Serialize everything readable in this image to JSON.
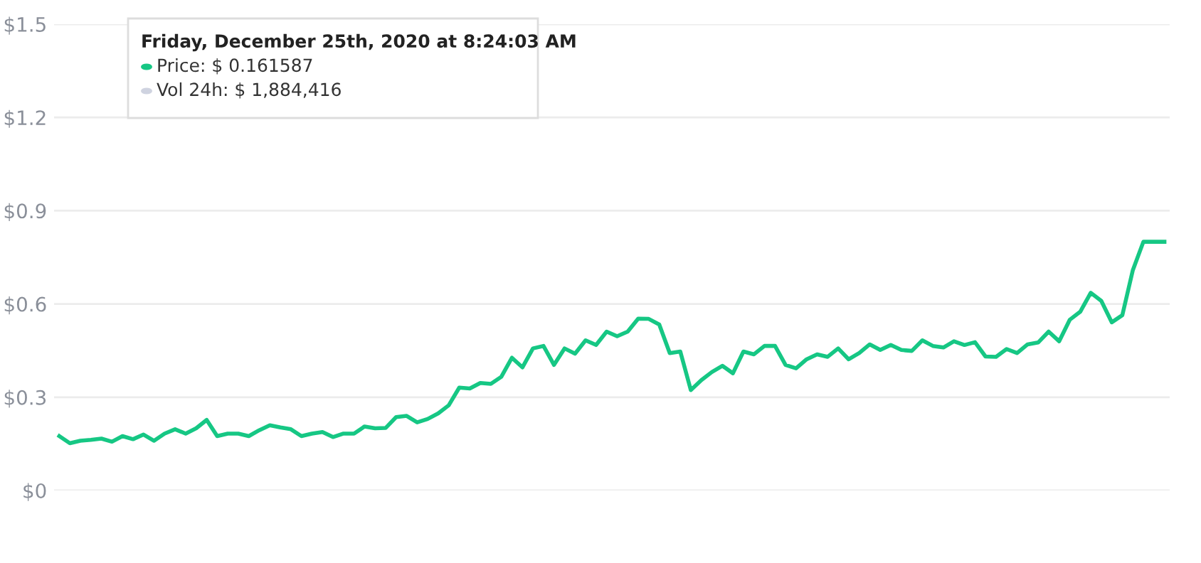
{
  "chart_data": {
    "type": "line",
    "categories": [
      null,
      null,
      null,
      null,
      null,
      null,
      null,
      null,
      null,
      null,
      null,
      null,
      null,
      null,
      null,
      null,
      null,
      null,
      null,
      null,
      null,
      null,
      null,
      null,
      null,
      null,
      null,
      null,
      null,
      null,
      null,
      null,
      null,
      null,
      null,
      null,
      null,
      null,
      null,
      null,
      null,
      null,
      null,
      null,
      null,
      null,
      null,
      null,
      null,
      null,
      null,
      null,
      null,
      null,
      null,
      null,
      null,
      null,
      null,
      null,
      null,
      null,
      null,
      null,
      null,
      null,
      null,
      null,
      null,
      null,
      null,
      null,
      null,
      null,
      null,
      null,
      null,
      null,
      null,
      null,
      null,
      null,
      null,
      null,
      null,
      null,
      null,
      null,
      null,
      null,
      null,
      null,
      null,
      null,
      null,
      null,
      null,
      null,
      null,
      null,
      null,
      null,
      null,
      null,
      null,
      null
    ],
    "series": [
      {
        "color": "#16c784",
        "values": [
          0.175,
          0.152,
          0.16,
          0.163,
          0.167,
          0.157,
          0.175,
          0.165,
          0.18,
          0.16,
          0.183,
          0.197,
          0.183,
          0.2,
          0.227,
          0.175,
          0.183,
          0.183,
          0.175,
          0.194,
          0.21,
          0.203,
          0.197,
          0.175,
          0.183,
          0.188,
          0.172,
          0.183,
          0.183,
          0.206,
          0.2,
          0.201,
          0.236,
          0.24,
          0.219,
          0.23,
          0.248,
          0.274,
          0.331,
          0.328,
          0.346,
          0.343,
          0.366,
          0.427,
          0.396,
          0.457,
          0.465,
          0.404,
          0.457,
          0.44,
          0.483,
          0.468,
          0.511,
          0.496,
          0.511,
          0.553,
          0.552,
          0.534,
          0.442,
          0.447,
          0.323,
          0.355,
          0.381,
          0.401,
          0.377,
          0.447,
          0.438,
          0.465,
          0.465,
          0.404,
          0.393,
          0.422,
          0.438,
          0.43,
          0.457,
          0.422,
          0.442,
          0.47,
          0.452,
          0.468,
          0.452,
          0.449,
          0.483,
          0.465,
          0.46,
          0.48,
          0.468,
          0.477,
          0.431,
          0.43,
          0.455,
          0.442,
          0.47,
          0.476,
          0.511,
          0.48,
          0.549,
          0.575,
          0.636,
          0.61,
          0.541,
          0.564,
          0.709,
          0.8,
          0.8,
          0.8
        ]
      }
    ],
    "ylim": [
      0,
      1.5
    ],
    "yticks": [
      {
        "value": 0,
        "label": "$0"
      },
      {
        "value": 0.3,
        "label": "$0.3"
      },
      {
        "value": 0.6,
        "label": "$0.6"
      },
      {
        "value": 0.9,
        "label": "$0.9"
      },
      {
        "value": 1.2,
        "label": "$1.2"
      },
      {
        "value": 1.5,
        "label": "$1.5"
      }
    ],
    "grid": "y",
    "tick_labels": "y",
    "annotations": [
      "Friday, December 25th, 2020 at 8:24:03 AM",
      "Price: $ 0.161587",
      "Vol 24h: $ 1,884,416"
    ]
  }
}
